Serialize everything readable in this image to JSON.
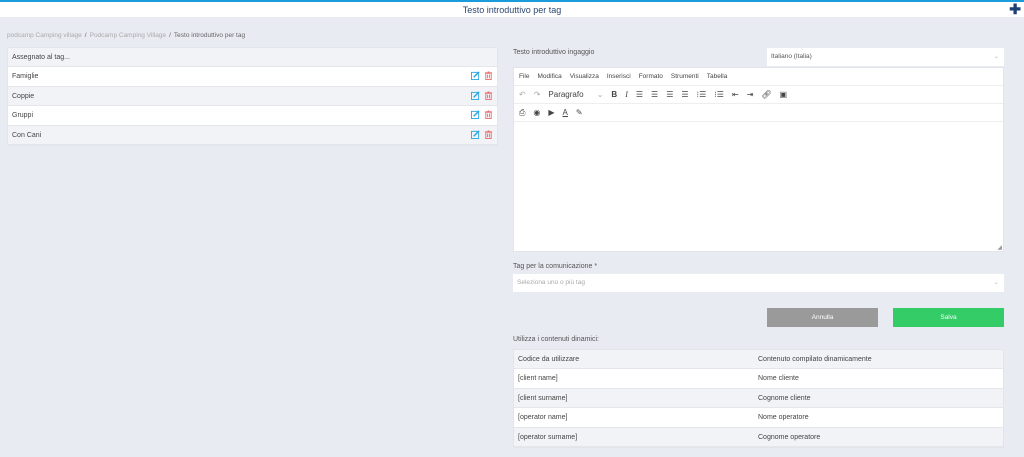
{
  "header": {
    "title": "Testo introduttivo per tag",
    "add_icon": "plus-icon",
    "accent": "#1a9bdc"
  },
  "breadcrumb": [
    "podcamp Camping village",
    "Podcamp Camping Village",
    "Testo introduttivo per tag"
  ],
  "tag_list": {
    "header": "Assegnato al tag...",
    "items": [
      "Famiglie",
      "Coppie",
      "Gruppi",
      "Con Cani"
    ]
  },
  "editor": {
    "label": "Testo introduttivo ingaggio",
    "language": "Italiano (Italia)",
    "menu": [
      "File",
      "Modifica",
      "Visualizza",
      "Inserisci",
      "Formato",
      "Strumenti",
      "Tabella"
    ],
    "block_format": "Paragrafo"
  },
  "tags_field": {
    "label": "Tag per la comunicazione *",
    "placeholder": "Seleziona uno o più tag"
  },
  "buttons": {
    "cancel": "Annulla",
    "save": "Salva",
    "cancel_color": "#9a9a9a",
    "save_color": "#33cc66"
  },
  "dynamic": {
    "label": "Utilizza i contenuti dinamici:",
    "columns": [
      "Codice da utilizzare",
      "Contenuto compilato dinamicamente"
    ],
    "rows": [
      [
        "[client name]",
        "Nome cliente"
      ],
      [
        "[client surname]",
        "Cognome cliente"
      ],
      [
        "[operator name]",
        "Nome operatore"
      ],
      [
        "[operator surname]",
        "Cognome operatore"
      ]
    ]
  }
}
